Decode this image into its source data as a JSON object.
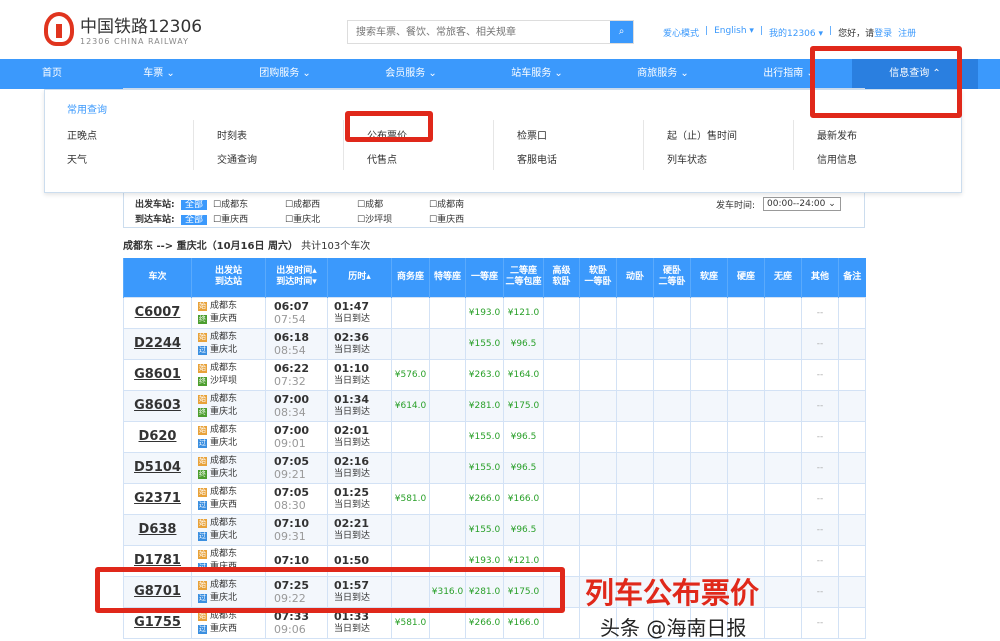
{
  "header": {
    "logo_title": "中国铁路12306",
    "logo_sub": "12306 CHINA RAILWAY",
    "search_placeholder": "搜索车票、餐饮、常旅客、相关规章",
    "links": [
      "爱心模式",
      "English ▾",
      "我的12306 ▾"
    ],
    "greeting": "您好，请",
    "login": "登录",
    "register": "注册"
  },
  "nav": [
    "首页",
    "车票 ⌄",
    "团购服务 ⌄",
    "会员服务 ⌄",
    "站车服务 ⌄",
    "商旅服务 ⌄",
    "出行指南 ⌄",
    "信息查询 ⌃"
  ],
  "dropdown": {
    "heading": "常用查询",
    "columns": [
      [
        "正晚点",
        "天气"
      ],
      [
        "时刻表",
        "交通查询"
      ],
      [
        "公布票价",
        "代售点"
      ],
      [
        "检票口",
        "客服电话"
      ],
      [
        "起（止）售时间",
        "列车状态"
      ],
      [
        "最新发布",
        "信用信息"
      ]
    ]
  },
  "filters": {
    "depart_label": "出发车站:",
    "arrive_label": "到达车站:",
    "all": "全部",
    "depart": [
      "成都东",
      "成都西",
      "成都",
      "成都南"
    ],
    "arrive": [
      "重庆西",
      "重庆北",
      "沙坪坝",
      "重庆西"
    ],
    "time_label": "发车时间:",
    "time_value": "00:00--24:00"
  },
  "route": {
    "text": "成都东 --> 重庆北（10月16日  周六）",
    "count": "共计103个车次"
  },
  "table": {
    "headers": [
      "车次",
      "出发站\n到达站",
      "出发时间▴\n到达时间▾",
      "历时▴",
      "商务座",
      "特等座",
      "一等座",
      "二等座\n二等包座",
      "高级\n软卧",
      "软卧\n一等卧",
      "动卧",
      "硬卧\n二等卧",
      "软座",
      "硬座",
      "无座",
      "其他",
      "备注"
    ],
    "rows": [
      [
        "C6007",
        "成都东",
        "重庆西",
        "06:07",
        "07:54",
        "01:47",
        "当日到达",
        "",
        "",
        "¥193.0",
        "¥121.0",
        "始",
        "终"
      ],
      [
        "D2244",
        "成都东",
        "重庆北",
        "06:18",
        "08:54",
        "02:36",
        "当日到达",
        "",
        "",
        "¥155.0",
        "¥96.5",
        "始",
        "过"
      ],
      [
        "G8601",
        "成都东",
        "沙坪坝",
        "06:22",
        "07:32",
        "01:10",
        "当日到达",
        "¥576.0",
        "",
        "¥263.0",
        "¥164.0",
        "始",
        "终"
      ],
      [
        "G8603",
        "成都东",
        "重庆北",
        "07:00",
        "08:34",
        "01:34",
        "当日到达",
        "¥614.0",
        "",
        "¥281.0",
        "¥175.0",
        "始",
        "终"
      ],
      [
        "D620",
        "成都东",
        "重庆北",
        "07:00",
        "09:01",
        "02:01",
        "当日到达",
        "",
        "",
        "¥155.0",
        "¥96.5",
        "始",
        "过"
      ],
      [
        "D5104",
        "成都东",
        "重庆北",
        "07:05",
        "09:21",
        "02:16",
        "当日到达",
        "",
        "",
        "¥155.0",
        "¥96.5",
        "始",
        "终"
      ],
      [
        "G2371",
        "成都东",
        "重庆西",
        "07:05",
        "08:30",
        "01:25",
        "当日到达",
        "¥581.0",
        "",
        "¥266.0",
        "¥166.0",
        "始",
        "过"
      ],
      [
        "D638",
        "成都东",
        "重庆北",
        "07:10",
        "09:31",
        "02:21",
        "当日到达",
        "",
        "",
        "¥155.0",
        "¥96.5",
        "始",
        "过"
      ],
      [
        "D1781",
        "成都东",
        "重庆西",
        "07:10",
        "",
        "01:50",
        "",
        "",
        "",
        "¥193.0",
        "¥121.0",
        "始",
        "过"
      ],
      [
        "G8701",
        "成都东",
        "重庆北",
        "07:25",
        "09:22",
        "01:57",
        "当日到达",
        "",
        "¥316.0",
        "¥281.0",
        "¥175.0",
        "始",
        "过"
      ],
      [
        "G1755",
        "成都东",
        "重庆西",
        "07:33",
        "09:06",
        "01:33",
        "当日到达",
        "¥581.0",
        "",
        "¥266.0",
        "¥166.0",
        "始",
        "过"
      ]
    ],
    "other_value": "--"
  },
  "annotation": "列车公布票价",
  "watermark": "头条 @海南日报",
  "colors": {
    "accent": "#3b99fc",
    "annotation_red": "#e0281a",
    "price_green": "#2aa02a"
  }
}
